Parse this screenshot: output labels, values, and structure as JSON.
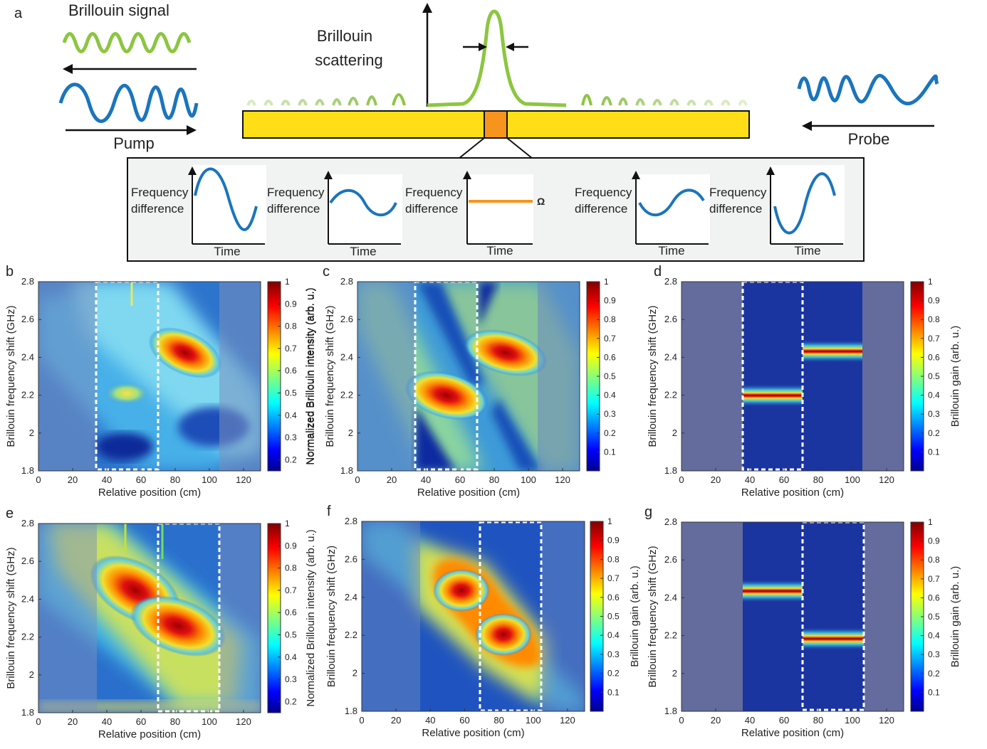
{
  "schematic": {
    "letter": "a",
    "brillouin_signal": "Brillouin signal",
    "pump": "Pump",
    "probe": "Probe",
    "scattering_line1": "Brillouin",
    "scattering_line2": "scattering",
    "freq_label_1": "Frequency",
    "freq_label_2": "difference",
    "time_label": "Time",
    "omega": "Ω"
  },
  "panels": [
    {
      "letter": "b",
      "xlabel": "Relative position (cm)",
      "ylabel": "Brillouin frequency shift (GHz)",
      "cblabel": "Normalized Brillouin intensity (arb. u.)"
    },
    {
      "letter": "c",
      "xlabel": "Relative position (cm)",
      "ylabel": "Brillouin frequency shift (GHz)",
      "cblabel": "Normalized Brillouin intensity (arb. u.)"
    },
    {
      "letter": "d",
      "xlabel": "Relative position (cm)",
      "ylabel": "Brillouin frequency shift (GHz)",
      "cblabel": "Brillouin gain (arb. u.)"
    },
    {
      "letter": "e",
      "xlabel": "Relative position (cm)",
      "ylabel": "Brillouin frequency shift (GHz)",
      "cblabel": "Normalized Brillouin intensity (arb. u.)"
    },
    {
      "letter": "f",
      "xlabel": "Relative position (cm)",
      "ylabel": "Brillouin frequency shift (GHz)",
      "cblabel": "Brillouin gain (arb. u.)"
    },
    {
      "letter": "g",
      "xlabel": "Relative position (cm)",
      "ylabel": "Brillouin frequency shift (GHz)",
      "cblabel": "Brillouin gain (arb. u.)"
    }
  ],
  "axes": {
    "x_ticks": [
      "0",
      "20",
      "40",
      "60",
      "80",
      "100",
      "120"
    ],
    "y_ticks": [
      "1.8",
      "2",
      "2.2",
      "2.4",
      "2.6",
      "2.8"
    ],
    "cb_ticks_a": [
      "0.2",
      "0.3",
      "0.4",
      "0.5",
      "0.6",
      "0.7",
      "0.8",
      "0.9",
      "1"
    ],
    "cb_ticks_b": [
      "0.1",
      "0.2",
      "0.3",
      "0.4",
      "0.5",
      "0.6",
      "0.7",
      "0.8",
      "0.9",
      "1"
    ]
  },
  "chart_data": [
    {
      "panel": "b",
      "type": "heatmap",
      "x_range": [
        0,
        130
      ],
      "y_range": [
        1.8,
        2.8
      ],
      "colorbar_range": [
        0.15,
        1
      ],
      "segments_cm": [
        [
          35,
          70
        ],
        [
          70,
          105
        ]
      ],
      "peaks": [
        {
          "x": 85,
          "y": 2.42
        },
        {
          "x": 50,
          "y": 2.2
        },
        {
          "x": 50,
          "y": 1.93
        }
      ],
      "dashed_window_cm": [
        35,
        70
      ]
    },
    {
      "panel": "c",
      "type": "heatmap",
      "x_range": [
        0,
        130
      ],
      "y_range": [
        1.8,
        2.8
      ],
      "colorbar_range": [
        0,
        1
      ],
      "peaks": [
        {
          "x": 52,
          "y": 2.2
        },
        {
          "x": 87,
          "y": 2.42
        }
      ],
      "dashed_window_cm": [
        35,
        70
      ]
    },
    {
      "panel": "d",
      "type": "heatmap",
      "x_range": [
        0,
        130
      ],
      "y_range": [
        1.8,
        2.8
      ],
      "colorbar_range": [
        0,
        1
      ],
      "peaks": [
        {
          "x_from": 35,
          "x_to": 70,
          "y": 2.2
        },
        {
          "x_from": 70,
          "x_to": 105,
          "y": 2.42
        }
      ],
      "dashed_window_cm": [
        35,
        70
      ]
    },
    {
      "panel": "e",
      "type": "heatmap",
      "x_range": [
        0,
        130
      ],
      "y_range": [
        1.8,
        2.8
      ],
      "colorbar_range": [
        0.15,
        1
      ],
      "peaks": [
        {
          "x": 52,
          "y": 2.42
        },
        {
          "x": 87,
          "y": 2.2
        }
      ],
      "dashed_window_cm": [
        70,
        105
      ]
    },
    {
      "panel": "f",
      "type": "heatmap",
      "x_range": [
        0,
        130
      ],
      "y_range": [
        1.8,
        2.8
      ],
      "colorbar_range": [
        0,
        1
      ],
      "peaks": [
        {
          "x": 60,
          "y": 2.42
        },
        {
          "x": 80,
          "y": 2.2
        }
      ],
      "dashed_window_cm": [
        70,
        105
      ]
    },
    {
      "panel": "g",
      "type": "heatmap",
      "x_range": [
        0,
        130
      ],
      "y_range": [
        1.8,
        2.8
      ],
      "colorbar_range": [
        0,
        1
      ],
      "peaks": [
        {
          "x_from": 35,
          "x_to": 70,
          "y": 2.42
        },
        {
          "x_from": 70,
          "x_to": 105,
          "y": 2.2
        }
      ],
      "dashed_window_cm": [
        70,
        105
      ]
    }
  ]
}
